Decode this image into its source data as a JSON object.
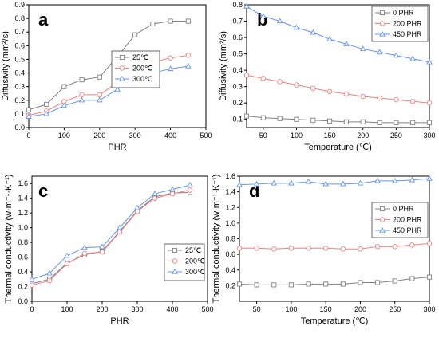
{
  "chart_data": [
    {
      "panel": "a",
      "type": "line",
      "xlabel": "PHR",
      "ylabel": "Diffusivity (mm²/s)",
      "xlim": [
        0,
        500
      ],
      "ylim": [
        0.0,
        0.9
      ],
      "xticks": [
        0,
        100,
        200,
        300,
        400,
        500
      ],
      "yticks": [
        0.0,
        0.1,
        0.2,
        0.3,
        0.4,
        0.5,
        0.6,
        0.7,
        0.8,
        0.9
      ],
      "ytick_labels": [
        "0.0",
        "0.1",
        "0.2",
        "0.3",
        "0.4",
        "0.5",
        "0.6",
        "0.7",
        "0.8",
        "0.9"
      ],
      "legend_position": "center-right",
      "x": [
        0,
        50,
        100,
        150,
        200,
        250,
        300,
        350,
        400,
        450
      ],
      "series": [
        {
          "name": "25℃",
          "color": "#808080",
          "marker": "square",
          "values": [
            0.13,
            0.17,
            0.3,
            0.35,
            0.37,
            0.52,
            0.68,
            0.76,
            0.78,
            0.78
          ]
        },
        {
          "name": "200℃",
          "color": "#f08080",
          "marker": "circle",
          "values": [
            0.09,
            0.12,
            0.19,
            0.24,
            0.24,
            0.33,
            0.42,
            0.48,
            0.51,
            0.53
          ]
        },
        {
          "name": "300℃",
          "color": "#6495ed",
          "marker": "triangle",
          "values": [
            0.08,
            0.1,
            0.16,
            0.2,
            0.2,
            0.28,
            0.36,
            0.4,
            0.43,
            0.45
          ]
        }
      ]
    },
    {
      "panel": "b",
      "type": "line",
      "xlabel": "Temperature (℃)",
      "ylabel": "Diffusivity (mm²/s)",
      "xlim": [
        25,
        300
      ],
      "ylim": [
        0.05,
        0.8
      ],
      "xticks": [
        50,
        100,
        150,
        200,
        250,
        300
      ],
      "yticks": [
        0.1,
        0.2,
        0.3,
        0.4,
        0.5,
        0.6,
        0.7,
        0.8
      ],
      "ytick_labels": [
        "0.1",
        "0.2",
        "0.3",
        "0.4",
        "0.5",
        "0.6",
        "0.7",
        "0.8"
      ],
      "legend_position": "top-right",
      "x": [
        25,
        50,
        75,
        100,
        125,
        150,
        175,
        200,
        225,
        250,
        275,
        300
      ],
      "series": [
        {
          "name": "0 PHR",
          "color": "#808080",
          "marker": "square",
          "values": [
            0.12,
            0.11,
            0.105,
            0.1,
            0.095,
            0.09,
            0.085,
            0.085,
            0.08,
            0.08,
            0.08,
            0.08
          ]
        },
        {
          "name": "200 PHR",
          "color": "#f08080",
          "marker": "circle",
          "values": [
            0.37,
            0.35,
            0.33,
            0.31,
            0.29,
            0.27,
            0.255,
            0.24,
            0.23,
            0.22,
            0.21,
            0.2
          ]
        },
        {
          "name": "450 PHR",
          "color": "#6495ed",
          "marker": "triangle",
          "values": [
            0.79,
            0.73,
            0.7,
            0.66,
            0.63,
            0.59,
            0.56,
            0.53,
            0.51,
            0.49,
            0.47,
            0.45
          ]
        }
      ]
    },
    {
      "panel": "c",
      "type": "line",
      "xlabel": "PHR",
      "ylabel": "Thermal conductivity (w·m⁻¹·K⁻¹)",
      "xlim": [
        0,
        500
      ],
      "ylim": [
        0.0,
        1.7
      ],
      "xticks": [
        0,
        100,
        200,
        300,
        400,
        500
      ],
      "yticks": [
        0.0,
        0.2,
        0.4,
        0.6,
        0.8,
        1.0,
        1.2,
        1.4,
        1.6
      ],
      "ytick_labels": [
        "0.0",
        "0.2",
        "0.4",
        "0.6",
        "0.8",
        "1.0",
        "1.2",
        "1.4",
        "1.6"
      ],
      "legend_position": "bottom-right",
      "x": [
        0,
        50,
        100,
        150,
        200,
        250,
        300,
        350,
        400,
        450
      ],
      "series": [
        {
          "name": "25℃",
          "color": "#808080",
          "marker": "square",
          "values": [
            0.24,
            0.3,
            0.52,
            0.63,
            0.68,
            0.95,
            1.23,
            1.42,
            1.47,
            1.48
          ]
        },
        {
          "name": "200℃",
          "color": "#f08080",
          "marker": "circle",
          "values": [
            0.22,
            0.28,
            0.51,
            0.65,
            0.67,
            0.94,
            1.22,
            1.4,
            1.46,
            1.51
          ]
        },
        {
          "name": "300℃",
          "color": "#6495ed",
          "marker": "triangle",
          "values": [
            0.3,
            0.38,
            0.62,
            0.73,
            0.74,
            1.0,
            1.27,
            1.46,
            1.52,
            1.58
          ]
        }
      ]
    },
    {
      "panel": "d",
      "type": "line",
      "xlabel": "Temperature (℃)",
      "ylabel": "Thermal conductivity (w·m⁻¹·K⁻¹)",
      "xlim": [
        25,
        300
      ],
      "ylim": [
        0.0,
        1.6
      ],
      "xticks": [
        50,
        100,
        150,
        200,
        250,
        300
      ],
      "yticks": [
        0.2,
        0.4,
        0.6,
        0.8,
        1.0,
        1.2,
        1.4,
        1.6
      ],
      "ytick_labels": [
        "0.2",
        "0.4",
        "0.6",
        "0.8",
        "1.0",
        "1.2",
        "1.4",
        "1.6"
      ],
      "legend_position": "center-right",
      "x": [
        25,
        50,
        75,
        100,
        125,
        150,
        175,
        200,
        225,
        250,
        275,
        300
      ],
      "series": [
        {
          "name": "0 PHR",
          "color": "#808080",
          "marker": "square",
          "values": [
            0.22,
            0.21,
            0.21,
            0.21,
            0.22,
            0.22,
            0.22,
            0.24,
            0.24,
            0.26,
            0.29,
            0.31
          ]
        },
        {
          "name": "200 PHR",
          "color": "#f08080",
          "marker": "circle",
          "values": [
            0.68,
            0.68,
            0.67,
            0.68,
            0.68,
            0.68,
            0.67,
            0.67,
            0.7,
            0.7,
            0.72,
            0.74
          ]
        },
        {
          "name": "450 PHR",
          "color": "#6495ed",
          "marker": "triangle",
          "values": [
            1.49,
            1.5,
            1.51,
            1.51,
            1.53,
            1.5,
            1.5,
            1.51,
            1.54,
            1.54,
            1.55,
            1.57
          ]
        }
      ]
    }
  ]
}
